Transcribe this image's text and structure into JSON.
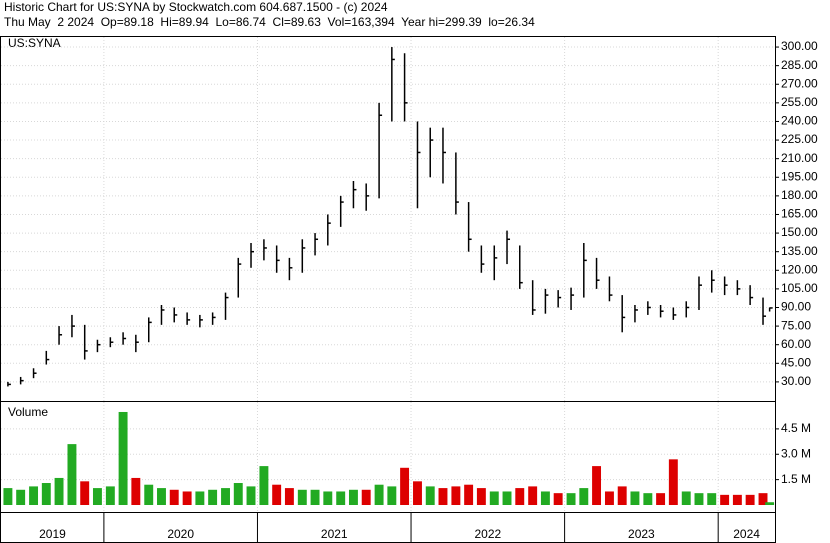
{
  "chart_data": {
    "type": "ohlc",
    "title": "Historic Chart for US:SYNA by Stockwatch.com 604.687.1500 - (c) 2024",
    "subtitle": "Thu May  2 2024  Op=89.18  Hi=89.94  Lo=86.74  Cl=89.63  Vol=163,394  Year hi=299.39  lo=26.34",
    "symbol": "US:SYNA",
    "volume_label": "Volume",
    "up_color": "#22aa22",
    "down_color": "#dd0000",
    "bar_color": "#000000",
    "xlim": [
      2019.33,
      2024.37
    ],
    "xticks": [
      2020,
      2021,
      2022,
      2023,
      2024
    ],
    "year_labels": [
      "2019",
      "2020",
      "2021",
      "2022",
      "2023",
      "2024"
    ],
    "x": [
      2019.375,
      2019.458,
      2019.542,
      2019.625,
      2019.708,
      2019.792,
      2019.875,
      2019.958,
      2020.042,
      2020.125,
      2020.208,
      2020.292,
      2020.375,
      2020.458,
      2020.542,
      2020.625,
      2020.708,
      2020.792,
      2020.875,
      2020.958,
      2021.042,
      2021.125,
      2021.208,
      2021.292,
      2021.375,
      2021.458,
      2021.542,
      2021.625,
      2021.708,
      2021.792,
      2021.875,
      2021.958,
      2022.042,
      2022.125,
      2022.208,
      2022.292,
      2022.375,
      2022.458,
      2022.542,
      2022.625,
      2022.708,
      2022.792,
      2022.875,
      2022.958,
      2023.042,
      2023.125,
      2023.208,
      2023.292,
      2023.375,
      2023.458,
      2023.542,
      2023.625,
      2023.708,
      2023.792,
      2023.875,
      2023.958,
      2024.042,
      2024.125,
      2024.208,
      2024.292,
      2024.335
    ],
    "high": [
      30,
      34,
      41,
      55,
      75,
      84,
      76,
      64,
      66,
      70,
      68,
      82,
      92,
      90,
      86,
      84,
      86,
      102,
      130,
      142,
      145,
      140,
      130,
      145,
      150,
      165,
      180,
      192,
      190,
      255,
      300,
      295,
      240,
      235,
      235,
      215,
      175,
      140,
      140,
      152,
      140,
      112,
      105,
      104,
      106,
      142,
      130,
      115,
      100,
      92,
      95,
      92,
      90,
      95,
      115,
      120,
      115,
      112,
      108,
      98,
      89.94
    ],
    "low": [
      26.34,
      28,
      33,
      44,
      60,
      66,
      48,
      54,
      58,
      60,
      54,
      62,
      76,
      78,
      76,
      74,
      76,
      80,
      98,
      122,
      128,
      118,
      112,
      118,
      132,
      140,
      155,
      170,
      168,
      178,
      240,
      240,
      170,
      195,
      190,
      165,
      135,
      118,
      112,
      125,
      105,
      84,
      85,
      90,
      88,
      98,
      105,
      95,
      70,
      78,
      84,
      82,
      80,
      82,
      88,
      102,
      100,
      100,
      92,
      76,
      86.74
    ],
    "close": [
      28,
      31,
      37,
      48,
      68,
      75,
      55,
      60,
      62,
      65,
      62,
      78,
      88,
      84,
      80,
      80,
      82,
      98,
      125,
      135,
      138,
      128,
      122,
      138,
      145,
      158,
      175,
      185,
      180,
      245,
      290,
      255,
      215,
      225,
      215,
      175,
      145,
      125,
      130,
      145,
      110,
      88,
      100,
      98,
      100,
      128,
      112,
      100,
      82,
      88,
      90,
      87,
      84,
      90,
      108,
      112,
      108,
      105,
      98,
      83,
      89.63
    ],
    "volume": [
      1.0,
      0.9,
      1.1,
      1.3,
      1.6,
      3.6,
      1.4,
      1.0,
      1.1,
      5.5,
      1.6,
      1.2,
      1.0,
      0.9,
      0.8,
      0.8,
      0.9,
      1.0,
      1.3,
      1.1,
      2.3,
      1.2,
      1.0,
      0.9,
      0.9,
      0.8,
      0.8,
      0.9,
      0.9,
      1.2,
      1.1,
      2.2,
      1.4,
      1.1,
      1.0,
      1.1,
      1.2,
      1.0,
      0.8,
      0.8,
      1.0,
      1.1,
      0.8,
      0.7,
      0.7,
      1.0,
      2.3,
      0.8,
      1.1,
      0.8,
      0.7,
      0.7,
      2.7,
      0.8,
      0.7,
      0.7,
      0.6,
      0.6,
      0.6,
      0.7,
      0.163394
    ],
    "ylim": [
      14.6,
      308.1
    ],
    "yticks": [
      {
        "value": 30,
        "label": "30.00"
      },
      {
        "value": 45,
        "label": "45.00"
      },
      {
        "value": 60,
        "label": "60.00"
      },
      {
        "value": 75,
        "label": "75.00"
      },
      {
        "value": 90,
        "label": "90.00"
      },
      {
        "value": 105,
        "label": "105.00"
      },
      {
        "value": 120,
        "label": "120.00"
      },
      {
        "value": 135,
        "label": "135.00"
      },
      {
        "value": 150,
        "label": "150.00"
      },
      {
        "value": 165,
        "label": "165.00"
      },
      {
        "value": 180,
        "label": "180.00"
      },
      {
        "value": 195,
        "label": "195.00"
      },
      {
        "value": 210,
        "label": "210.00"
      },
      {
        "value": 225,
        "label": "225.00"
      },
      {
        "value": 240,
        "label": "240.00"
      },
      {
        "value": 255,
        "label": "255.00"
      },
      {
        "value": 270,
        "label": "270.00"
      },
      {
        "value": 285,
        "label": "285.00"
      },
      {
        "value": 300,
        "label": "300.00"
      }
    ],
    "vlim": [
      0,
      6.09
    ],
    "vticks": [
      {
        "value": 1.5,
        "label": "1.5 M"
      },
      {
        "value": 3,
        "label": "3.0 M"
      },
      {
        "value": 4.5,
        "label": "4.5 M"
      }
    ],
    "grid": true
  }
}
